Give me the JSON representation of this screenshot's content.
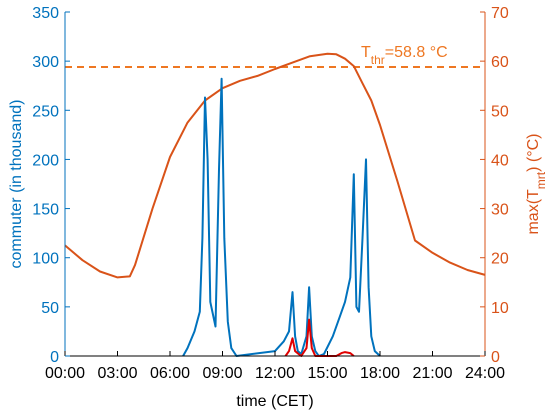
{
  "colors": {
    "left_axis": "#0072BD",
    "right_axis": "#D95319",
    "threshold": "#EE7722",
    "commuter_line": "#0072BD",
    "exceed_line": "#E00000",
    "axis_black": "#000000"
  },
  "chart_data": {
    "type": "line",
    "xlabel": "time (CET)",
    "ylabel_left": "commuter (in thousand)",
    "ylabel_right_main": "max(T",
    "ylabel_right_sub": "mrt",
    "ylabel_right_tail": ") (°C)",
    "xlim": [
      0,
      24
    ],
    "ylim_left": [
      0,
      350
    ],
    "ylim_right": [
      0,
      70
    ],
    "x_ticks": [
      0,
      3,
      6,
      9,
      12,
      15,
      18,
      21,
      24
    ],
    "x_tick_labels": [
      "00:00",
      "03:00",
      "06:00",
      "09:00",
      "12:00",
      "15:00",
      "18:00",
      "21:00",
      "24:00"
    ],
    "y_left_ticks": [
      0,
      50,
      100,
      150,
      200,
      250,
      300,
      350
    ],
    "y_left_tick_labels": [
      "0",
      "50",
      "100",
      "150",
      "200",
      "250",
      "300",
      "350"
    ],
    "y_right_ticks": [
      0,
      10,
      20,
      30,
      40,
      50,
      60,
      70
    ],
    "y_right_tick_labels": [
      "0",
      "10",
      "20",
      "30",
      "40",
      "50",
      "60",
      "70"
    ],
    "threshold": {
      "value": 58.8,
      "label_main": "T",
      "label_sub": "thr",
      "label_tail": "=58.8 °C"
    },
    "series": [
      {
        "axis": "right",
        "x": [
          0,
          1,
          2,
          3,
          3.7,
          4,
          5,
          6,
          7,
          8,
          9,
          10,
          11,
          12,
          13,
          14,
          15,
          15.5,
          16,
          16.5,
          17,
          17.5,
          18,
          19,
          20,
          21,
          22,
          23,
          24
        ],
        "y": [
          22.5,
          19.5,
          17.2,
          16.0,
          16.2,
          18.5,
          30.0,
          40.5,
          47.5,
          52.0,
          54.5,
          56.0,
          57.0,
          58.4,
          59.7,
          61.0,
          61.5,
          61.4,
          60.5,
          59.0,
          55.5,
          52.0,
          47.0,
          35.5,
          23.5,
          21.0,
          19.0,
          17.5,
          16.5
        ]
      },
      {
        "axis": "left",
        "x": [
          6.75,
          7.0,
          7.4,
          7.7,
          7.85,
          8.0,
          8.15,
          8.3,
          8.6,
          8.8,
          8.95,
          9.1,
          9.3,
          9.5,
          9.8,
          12.0,
          12.5,
          12.8,
          13.0,
          13.15,
          13.3,
          13.5,
          13.8,
          13.95,
          14.1,
          14.3,
          14.5,
          14.8,
          15.3,
          15.7,
          16.0,
          16.3,
          16.5,
          16.65,
          16.8,
          17.0,
          17.2,
          17.35,
          17.5,
          17.7,
          18.0
        ],
        "y": [
          0,
          8,
          25,
          45,
          120,
          263,
          200,
          55,
          30,
          190,
          282,
          120,
          35,
          8,
          0,
          5,
          15,
          25,
          65,
          20,
          5,
          2,
          20,
          70,
          20,
          5,
          0,
          2,
          20,
          40,
          55,
          80,
          185,
          50,
          45,
          120,
          200,
          70,
          20,
          5,
          0
        ]
      },
      {
        "axis": "left",
        "x": [
          12.6,
          12.8,
          13.0,
          13.15,
          13.35,
          13.5,
          13.8,
          13.95,
          14.1,
          14.3,
          15.5,
          15.8,
          16.0,
          16.3,
          16.5
        ],
        "y": [
          0,
          5,
          18,
          5,
          2,
          0,
          8,
          37,
          8,
          0,
          0,
          3,
          4,
          3,
          0
        ]
      }
    ]
  }
}
